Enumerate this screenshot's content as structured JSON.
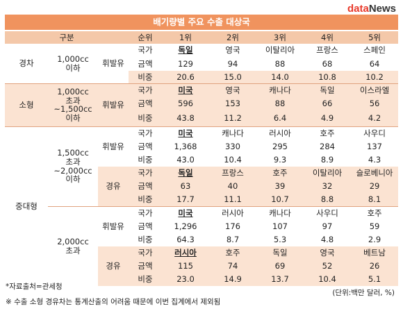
{
  "logo": {
    "a": "data",
    "b": "News"
  },
  "title": "배기량별 주요 수출 대상국",
  "header": {
    "group": "구분",
    "rank": "순위",
    "ranks": [
      "1위",
      "2위",
      "3위",
      "4위",
      "5위"
    ]
  },
  "row_labels": {
    "country": "국가",
    "amount": "금액",
    "share": "비중"
  },
  "fuel": {
    "gasoline": "휘발유",
    "diesel": "경유"
  },
  "segments": {
    "light": {
      "name": "경차",
      "cc": "1,000cc\n이하"
    },
    "small": {
      "name": "소형",
      "cc": "1,000cc\n초과\n~1,500cc\n이하"
    },
    "midlarge": {
      "name": "중대형",
      "cc1": "1,500cc\n초과\n~2,000cc\n이하",
      "cc2": "2,000cc\n초과"
    }
  },
  "blocks": [
    {
      "countries": [
        "독일",
        "영국",
        "이탈리아",
        "프랑스",
        "스페인"
      ],
      "amounts": [
        "129",
        "94",
        "88",
        "68",
        "64"
      ],
      "shares": [
        "20.6",
        "15.0",
        "14.0",
        "10.8",
        "10.2"
      ]
    },
    {
      "countries": [
        "미국",
        "영국",
        "캐나다",
        "독일",
        "이스라엘"
      ],
      "amounts": [
        "596",
        "153",
        "88",
        "66",
        "56"
      ],
      "shares": [
        "43.8",
        "11.2",
        "6.4",
        "4.9",
        "4.2"
      ]
    },
    {
      "countries": [
        "미국",
        "캐나다",
        "러시아",
        "호주",
        "사우디"
      ],
      "amounts": [
        "1,368",
        "330",
        "295",
        "284",
        "137"
      ],
      "shares": [
        "43.0",
        "10.4",
        "9.3",
        "8.9",
        "4.3"
      ]
    },
    {
      "countries": [
        "독일",
        "프랑스",
        "호주",
        "이탈리아",
        "슬로베니아"
      ],
      "amounts": [
        "63",
        "40",
        "39",
        "32",
        "29"
      ],
      "shares": [
        "17.7",
        "11.1",
        "10.7",
        "8.8",
        "8.1"
      ]
    },
    {
      "countries": [
        "미국",
        "러시아",
        "캐나다",
        "사우디",
        "호주"
      ],
      "amounts": [
        "1,296",
        "176",
        "107",
        "97",
        "59"
      ],
      "shares": [
        "64.3",
        "8.7",
        "5.3",
        "4.8",
        "2.9"
      ]
    },
    {
      "countries": [
        "러시아",
        "호주",
        "독일",
        "영국",
        "베트남"
      ],
      "amounts": [
        "115",
        "74",
        "69",
        "52",
        "26"
      ],
      "shares": [
        "23.0",
        "14.9",
        "13.7",
        "10.4",
        "5.1"
      ]
    }
  ],
  "footer": {
    "source": "*자료출처=관세청",
    "note": "※ 수출 소형 경유차는 통계산출의 어려움 때문에 이번 집계에서 제외됨",
    "unit": "(단위:백만 달러, %)"
  }
}
